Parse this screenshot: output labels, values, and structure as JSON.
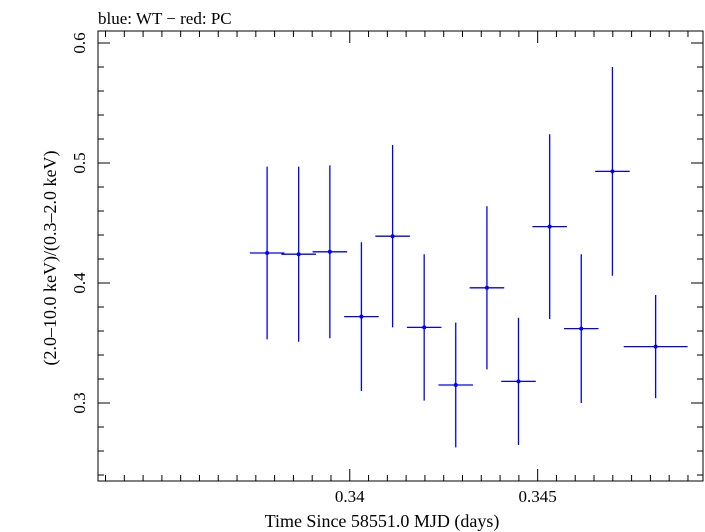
{
  "chart_data": {
    "type": "scatter",
    "title": "blue: WT − red: PC",
    "xlabel": "Time Since 58551.0 MJD (days)",
    "ylabel": "(2.0–10.0 keV)/(0.3–2.0 keV)",
    "xlim": [
      0.3333,
      0.3494
    ],
    "ylim": [
      0.235,
      0.61
    ],
    "x_ticks": [
      0.34,
      0.345
    ],
    "x_tick_labels": [
      "0.34",
      "0.345"
    ],
    "y_ticks": [
      0.3,
      0.4,
      0.5,
      0.6
    ],
    "y_tick_labels": [
      "0.3",
      "0.4",
      "0.5",
      "0.6"
    ],
    "grid": false,
    "series": [
      {
        "color": "#0000ff",
        "points": [
          {
            "x": 0.3378,
            "xerr": 0.00046,
            "y": 0.425,
            "yerr": 0.072
          },
          {
            "x": 0.33864,
            "xerr": 0.00046,
            "y": 0.424,
            "yerr": 0.073
          },
          {
            "x": 0.33947,
            "xerr": 0.00046,
            "y": 0.426,
            "yerr": 0.072
          },
          {
            "x": 0.34031,
            "xerr": 0.00046,
            "y": 0.372,
            "yerr": 0.062
          },
          {
            "x": 0.34114,
            "xerr": 0.00046,
            "y": 0.439,
            "yerr": 0.076
          },
          {
            "x": 0.34198,
            "xerr": 0.00046,
            "y": 0.363,
            "yerr": 0.061
          },
          {
            "x": 0.34282,
            "xerr": 0.00046,
            "y": 0.315,
            "yerr": 0.052
          },
          {
            "x": 0.34365,
            "xerr": 0.00046,
            "y": 0.396,
            "yerr": 0.068
          },
          {
            "x": 0.34449,
            "xerr": 0.00046,
            "y": 0.318,
            "yerr": 0.053
          },
          {
            "x": 0.34532,
            "xerr": 0.00046,
            "y": 0.447,
            "yerr": 0.077
          },
          {
            "x": 0.34616,
            "xerr": 0.00046,
            "y": 0.362,
            "yerr": 0.062
          },
          {
            "x": 0.34699,
            "xerr": 0.00046,
            "y": 0.493,
            "yerr": 0.087
          },
          {
            "x": 0.34814,
            "xerr": 0.00085,
            "y": 0.347,
            "yerr": 0.043
          }
        ]
      }
    ]
  }
}
